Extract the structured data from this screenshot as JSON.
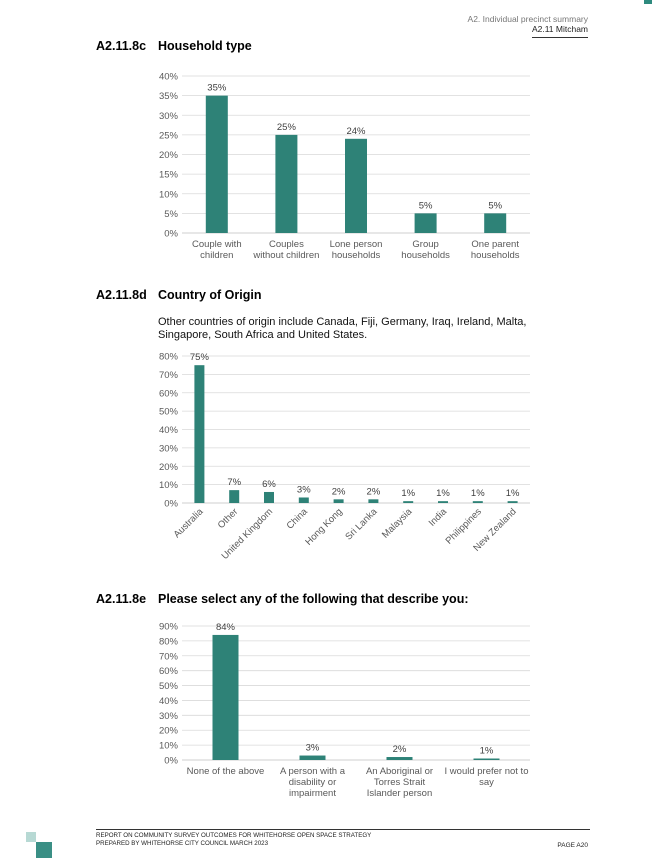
{
  "header": {
    "line1": "A2. Individual precinct summary",
    "line2": "A2.11 Mitcham"
  },
  "sections": [
    {
      "num": "A2.11.8c",
      "title": "Household type"
    },
    {
      "num": "A2.11.8d",
      "title": "Country of Origin"
    },
    {
      "num": "A2.11.8e",
      "title": "Please select any of the following that describe you:"
    }
  ],
  "note": "Other countries of origin include Canada, Fiji, Germany, Iraq, Ireland, Malta, Singapore, South Africa and United States.",
  "colors": {
    "bar": "#2e8277",
    "grid": "#d9d9d9",
    "tick": "#595959"
  },
  "chart_data": [
    {
      "type": "bar",
      "categories": [
        "Couple with\nchildren",
        "Couples\nwithout children",
        "Lone person\nhouseholds",
        "Group\nhouseholds",
        "One parent\nhouseholds"
      ],
      "values": [
        35,
        25,
        24,
        5,
        5
      ],
      "labels": [
        "35%",
        "25%",
        "24%",
        "5%",
        "5%"
      ],
      "yticks": [
        0,
        5,
        10,
        15,
        20,
        25,
        30,
        35,
        40
      ],
      "ylim": [
        0,
        40
      ],
      "grid": true
    },
    {
      "type": "bar",
      "categories": [
        "Australia",
        "Other",
        "United Kingdom",
        "China",
        "Hong Kong",
        "Sri Lanka",
        "Malaysia",
        "India",
        "Philippines",
        "New Zealand"
      ],
      "values": [
        75,
        7,
        6,
        3,
        2,
        2,
        1,
        1,
        1,
        1
      ],
      "labels": [
        "75%",
        "7%",
        "6%",
        "3%",
        "2%",
        "2%",
        "1%",
        "1%",
        "1%",
        "1%"
      ],
      "yticks": [
        0,
        10,
        20,
        30,
        40,
        50,
        60,
        70,
        80
      ],
      "ylim": [
        0,
        80
      ],
      "grid": true
    },
    {
      "type": "bar",
      "categories": [
        "None of the above",
        "A person with a\ndisability or\nimpairment",
        "An Aboriginal or\nTorres Strait\nIslander person",
        "I would prefer not to\nsay"
      ],
      "values": [
        84,
        3,
        2,
        1
      ],
      "labels": [
        "84%",
        "3%",
        "2%",
        "1%"
      ],
      "yticks": [
        0,
        10,
        20,
        30,
        40,
        50,
        60,
        70,
        80,
        90
      ],
      "ylim": [
        0,
        90
      ],
      "grid": true
    }
  ],
  "footer": {
    "line1": "REPORT ON COMMUNITY SURVEY OUTCOMES FOR WHITEHORSE OPEN SPACE STRATEGY",
    "line2": "PREPARED BY WHITEHORSE CITY COUNCIL MARCH 2023",
    "page": "PAGE A20"
  }
}
